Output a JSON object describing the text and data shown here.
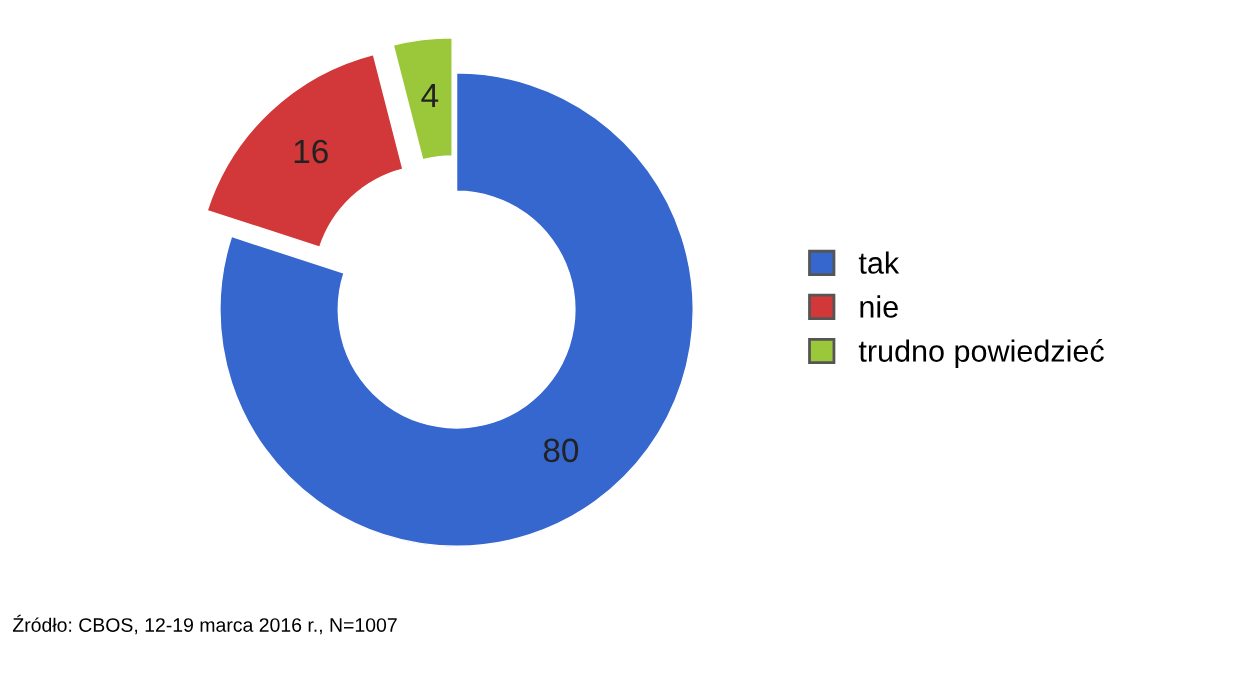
{
  "chart_data": {
    "type": "donut",
    "categories": [
      "tak",
      "nie",
      "trudno powiedzieć"
    ],
    "values": [
      80,
      16,
      4
    ],
    "colors": [
      "#3567cf",
      "#d2373a",
      "#9bc83a"
    ],
    "data_labels": true,
    "legend": "right",
    "annotations": [
      "Źródło: CBOS, 12-19 marca 2016 r., N=1007"
    ]
  }
}
